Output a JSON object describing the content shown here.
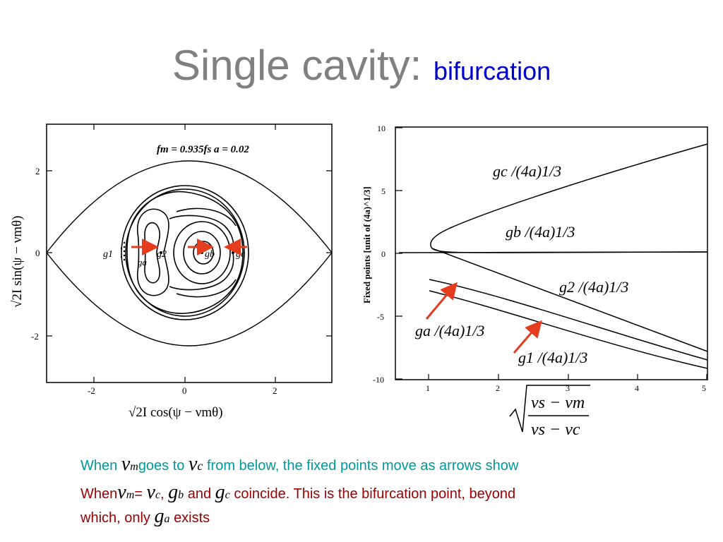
{
  "title": {
    "main": "Single cavity:",
    "sub": "bifurcation"
  },
  "left_plot": {
    "params": "fm = 0.935fs   a = 0.02",
    "yticks": [
      "2",
      "0",
      "-2"
    ],
    "xticks": [
      "-2",
      "0",
      "2"
    ],
    "labels": {
      "g1": "g1",
      "ga": "ga",
      "g2": "g2",
      "gb": "gb",
      "gc": "gc"
    },
    "ylabel": "√2I sin(ψ − νmθ)",
    "xlabel": "√2I cos(ψ − νmθ)"
  },
  "right_plot": {
    "ylabel": "Fixed points [unit of (4a)^1/3]",
    "xlabel_num": "νs − νm",
    "xlabel_den": "νs − νc",
    "yticks": [
      "10",
      "5",
      "0",
      "-5",
      "-10"
    ],
    "xticks": [
      "1",
      "2",
      "3",
      "4",
      "5"
    ],
    "curve_labels": {
      "gc": "gc /(4a)1/3",
      "gb": "gb /(4a)1/3",
      "g2": "g2 /(4a)1/3",
      "ga": "ga /(4a)1/3",
      "g1": "g1 /(4a)1/3"
    },
    "arrow_color": "#e63c1e"
  },
  "captions": {
    "line1": {
      "when": "When",
      "goes_to": "goes to",
      "rest": "from below, the fixed points move as arrows show"
    },
    "line2": {
      "when": "When",
      "eq": "=",
      "comma": ",",
      "and": "and",
      "rest": "coincide. This is the bifurcation point, beyond"
    },
    "line3": {
      "which": "which, only",
      "exists": "exists"
    }
  },
  "colors": {
    "title": "#808080",
    "subtitle": "#0000cc",
    "teal": "#009999",
    "maroon": "#990000"
  }
}
